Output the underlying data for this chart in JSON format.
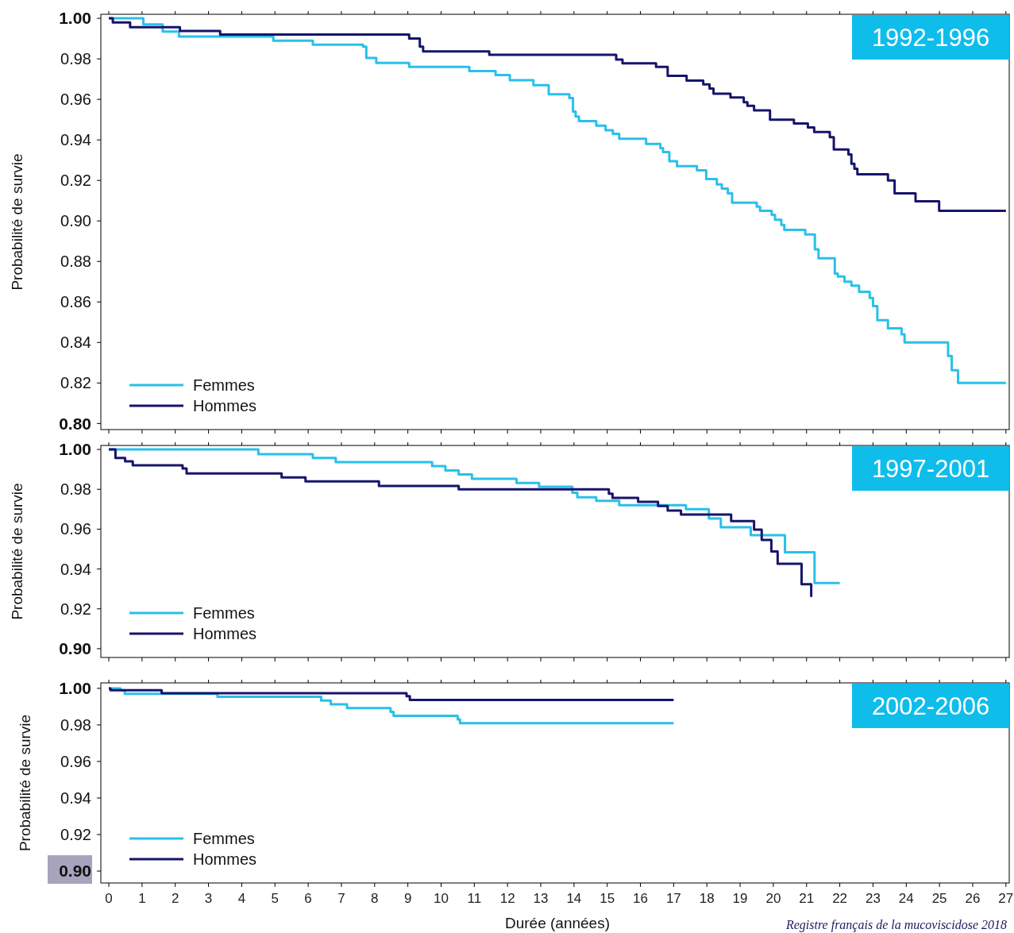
{
  "chart_data": [
    {
      "type": "step",
      "title": "1992-1996",
      "ylabel": "Probabilité de survie",
      "xlim": [
        -0.24,
        27.1
      ],
      "xticks": [
        0,
        1,
        2,
        3,
        4,
        5,
        6,
        7,
        8,
        9,
        10,
        11,
        12,
        13,
        14,
        15,
        16,
        17,
        18,
        19,
        20,
        21,
        22,
        23,
        24,
        25,
        26,
        27
      ],
      "ylim": [
        0.797,
        1.002
      ],
      "yticks": [
        {
          "value": 0.8,
          "label": "0.80"
        },
        {
          "value": 0.82,
          "label": "0.82"
        },
        {
          "value": 0.84,
          "label": "0.84"
        },
        {
          "value": 0.86,
          "label": "0.86"
        },
        {
          "value": 0.88,
          "label": "0.88"
        },
        {
          "value": 0.9,
          "label": "0.90"
        },
        {
          "value": 0.92,
          "label": "0.92"
        },
        {
          "value": 0.94,
          "label": "0.94"
        },
        {
          "value": 0.96,
          "label": "0.96"
        },
        {
          "value": 0.98,
          "label": "0.98"
        },
        {
          "value": 1.0,
          "label": "1.00"
        }
      ],
      "tick_labels": "y",
      "legend": "bottom left",
      "series": [
        {
          "name": "Femmes",
          "color": "#29c0ea",
          "x": [
            0,
            1.04,
            1.62,
            2.11,
            4.95,
            6.14,
            7.65,
            7.75,
            8.05,
            9.04,
            10.85,
            11.64,
            12.07,
            12.78,
            13.24,
            13.86,
            13.97,
            14.05,
            14.15,
            14.67,
            14.95,
            15.17,
            15.36,
            16.17,
            16.6,
            16.68,
            16.87,
            17.1,
            17.7,
            17.98,
            18.3,
            18.45,
            18.63,
            18.76,
            19.5,
            19.6,
            19.95,
            20.05,
            20.24,
            20.33,
            20.96,
            21.25,
            21.36,
            21.85,
            21.94,
            22.14,
            22.35,
            22.58,
            22.9,
            23.0,
            23.13,
            23.45,
            23.86,
            23.95,
            25.26,
            25.37,
            25.56,
            27.0
          ],
          "values": [
            1.0,
            0.997,
            0.9935,
            0.991,
            0.989,
            0.987,
            0.986,
            0.9804,
            0.978,
            0.976,
            0.974,
            0.972,
            0.9695,
            0.967,
            0.9625,
            0.9606,
            0.954,
            0.9515,
            0.9493,
            0.947,
            0.9448,
            0.943,
            0.9406,
            0.938,
            0.936,
            0.934,
            0.9295,
            0.927,
            0.925,
            0.9207,
            0.918,
            0.916,
            0.9136,
            0.909,
            0.907,
            0.905,
            0.903,
            0.9006,
            0.898,
            0.8956,
            0.8933,
            0.886,
            0.8816,
            0.874,
            0.8726,
            0.87,
            0.868,
            0.865,
            0.862,
            0.858,
            0.851,
            0.847,
            0.844,
            0.84,
            0.8334,
            0.8263,
            0.82,
            0.82
          ]
        },
        {
          "name": "Hommes",
          "color": "#16146b",
          "x": [
            0,
            0.12,
            0.64,
            2.14,
            3.35,
            9.04,
            9.36,
            9.46,
            11.45,
            15.27,
            15.46,
            16.47,
            16.82,
            17.39,
            17.89,
            18.08,
            18.2,
            18.71,
            19.11,
            19.22,
            19.42,
            19.9,
            20.62,
            21.04,
            21.23,
            21.7,
            21.82,
            22.26,
            22.35,
            22.44,
            22.53,
            23.45,
            23.65,
            24.28,
            24.99,
            27.0
          ],
          "values": [
            1.0,
            0.998,
            0.9956,
            0.9938,
            0.992,
            0.99,
            0.986,
            0.9837,
            0.982,
            0.9797,
            0.9778,
            0.976,
            0.9716,
            0.9693,
            0.9674,
            0.9654,
            0.9628,
            0.9609,
            0.9586,
            0.9568,
            0.9546,
            0.95,
            0.9481,
            0.9461,
            0.9439,
            0.9413,
            0.9353,
            0.9328,
            0.9282,
            0.9258,
            0.923,
            0.92,
            0.9136,
            0.9097,
            0.905,
            0.905
          ]
        }
      ]
    },
    {
      "type": "step",
      "title": "1997-2001",
      "ylabel": "Probabilité de survie",
      "xlim": [
        -0.24,
        27.1
      ],
      "xticks": [
        0,
        1,
        2,
        3,
        4,
        5,
        6,
        7,
        8,
        9,
        10,
        11,
        12,
        13,
        14,
        15,
        16,
        17,
        18,
        19,
        20,
        21,
        22,
        23,
        24,
        25,
        26,
        27
      ],
      "ylim": [
        0.8956,
        1.002
      ],
      "yticks": [
        {
          "value": 0.9,
          "label": "0.90"
        },
        {
          "value": 0.92,
          "label": "0.92"
        },
        {
          "value": 0.94,
          "label": "0.94"
        },
        {
          "value": 0.96,
          "label": "0.96"
        },
        {
          "value": 0.98,
          "label": "0.98"
        },
        {
          "value": 1.0,
          "label": "1.00"
        }
      ],
      "tick_labels": "y",
      "legend": "bottom left",
      "series": [
        {
          "name": "Femmes",
          "color": "#29c0ea",
          "x": [
            0,
            4.5,
            6.14,
            6.83,
            9.73,
            10.13,
            10.53,
            10.93,
            12.27,
            12.95,
            13.95,
            14.1,
            14.67,
            15.36,
            17.37,
            18.06,
            18.42,
            19.32,
            20.35,
            21.24,
            22.0
          ],
          "values": [
            1.0,
            0.9976,
            0.9957,
            0.9936,
            0.9916,
            0.9894,
            0.9875,
            0.9853,
            0.9832,
            0.9813,
            0.9783,
            0.976,
            0.9742,
            0.972,
            0.97,
            0.9653,
            0.961,
            0.957,
            0.9484,
            0.933,
            0.933
          ]
        },
        {
          "name": "Hommes",
          "color": "#16146b",
          "x": [
            0,
            0.2,
            0.49,
            0.72,
            2.22,
            2.34,
            5.2,
            5.92,
            8.13,
            10.53,
            15.05,
            15.16,
            15.93,
            16.53,
            16.82,
            17.22,
            18.73,
            19.42,
            19.65,
            19.94,
            20.13,
            20.85,
            21.14
          ],
          "values": [
            1.0,
            0.9957,
            0.994,
            0.992,
            0.9904,
            0.988,
            0.986,
            0.984,
            0.9817,
            0.98,
            0.9778,
            0.9757,
            0.9737,
            0.9716,
            0.9693,
            0.9673,
            0.964,
            0.9598,
            0.9546,
            0.9488,
            0.9426,
            0.9324,
            0.926
          ]
        }
      ]
    },
    {
      "type": "step",
      "title": "2002-2006",
      "xlabel": "Durée (années)",
      "ylabel": "Probabilité de survie",
      "xlim": [
        -0.24,
        27.1
      ],
      "xticks": [
        0,
        1,
        2,
        3,
        4,
        5,
        6,
        7,
        8,
        9,
        10,
        11,
        12,
        13,
        14,
        15,
        16,
        17,
        18,
        19,
        20,
        21,
        22,
        23,
        24,
        25,
        26,
        27
      ],
      "ylim": [
        0.8935,
        1.003
      ],
      "yticks": [
        {
          "value": 0.9,
          "label": "0.90"
        },
        {
          "value": 0.92,
          "label": "0.92"
        },
        {
          "value": 0.94,
          "label": "0.94"
        },
        {
          "value": 0.96,
          "label": "0.96"
        },
        {
          "value": 0.98,
          "label": "0.98"
        },
        {
          "value": 1.0,
          "label": "1.00"
        }
      ],
      "legend": "bottom left",
      "annotations": [
        "Registre français de la mucoviscidose 2018"
      ],
      "series": [
        {
          "name": "Femmes",
          "color": "#29c0ea",
          "x": [
            0,
            0.35,
            0.48,
            3.27,
            6.39,
            6.68,
            7.17,
            8.48,
            8.57,
            10.5,
            10.57,
            17.0
          ],
          "values": [
            1.0,
            0.999,
            0.997,
            0.9954,
            0.9933,
            0.9913,
            0.9892,
            0.9871,
            0.985,
            0.983,
            0.981,
            0.981
          ]
        },
        {
          "name": "Hommes",
          "color": "#16146b",
          "x": [
            0,
            0.05,
            1.59,
            8.96,
            9.06,
            17.0
          ],
          "values": [
            1.0,
            0.999,
            0.9974,
            0.9957,
            0.9937,
            0.9937
          ]
        }
      ]
    }
  ]
}
